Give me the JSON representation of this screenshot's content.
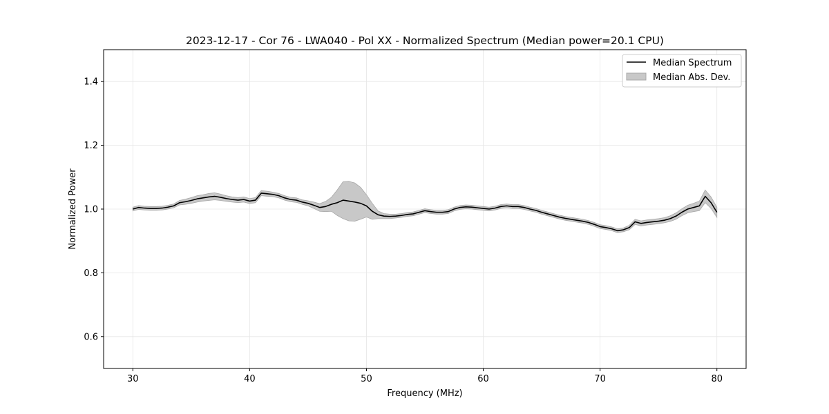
{
  "chart_data": {
    "type": "line",
    "title": "2023-12-17 - Cor 76 - LWA040 - Pol XX - Normalized Spectrum (Median power=20.1 CPU)",
    "xlabel": "Frequency (MHz)",
    "ylabel": "Normalized Power",
    "xlim": [
      27.5,
      82.5
    ],
    "ylim": [
      0.5,
      1.5
    ],
    "xticks": [
      30,
      40,
      50,
      60,
      70,
      80
    ],
    "yticks": [
      0.6,
      0.8,
      1.0,
      1.2,
      1.4
    ],
    "xtick_labels": [
      "30",
      "40",
      "50",
      "60",
      "70",
      "80"
    ],
    "ytick_labels": [
      "0.6",
      "0.8",
      "1.0",
      "1.2",
      "1.4"
    ],
    "grid": true,
    "legend_position": "top-right",
    "legend": [
      "Median Spectrum",
      "Median Abs. Dev."
    ],
    "colors": {
      "line": "#000000",
      "band": "#c8c8c8",
      "band_edge": "#a8a8a8",
      "grid": "#e6e6e6"
    },
    "series": [
      {
        "name": "Median Spectrum",
        "x": [
          30.0,
          30.5,
          31.0,
          31.5,
          32.0,
          32.5,
          33.0,
          33.5,
          34.0,
          34.5,
          35.0,
          35.5,
          36.0,
          36.5,
          37.0,
          37.5,
          38.0,
          38.5,
          39.0,
          39.5,
          40.0,
          40.5,
          41.0,
          41.5,
          42.0,
          42.5,
          43.0,
          43.5,
          44.0,
          44.5,
          45.0,
          45.5,
          46.0,
          46.5,
          47.0,
          47.5,
          48.0,
          48.5,
          49.0,
          49.5,
          50.0,
          50.5,
          51.0,
          51.5,
          52.0,
          52.5,
          53.0,
          53.5,
          54.0,
          54.5,
          55.0,
          55.5,
          56.0,
          56.5,
          57.0,
          57.5,
          58.0,
          58.5,
          59.0,
          59.5,
          60.0,
          60.5,
          61.0,
          61.5,
          62.0,
          62.5,
          63.0,
          63.5,
          64.0,
          64.5,
          65.0,
          65.5,
          66.0,
          66.5,
          67.0,
          67.5,
          68.0,
          68.5,
          69.0,
          69.5,
          70.0,
          70.5,
          71.0,
          71.5,
          72.0,
          72.5,
          73.0,
          73.5,
          74.0,
          74.5,
          75.0,
          75.5,
          76.0,
          76.5,
          77.0,
          77.5,
          78.0,
          78.5,
          79.0,
          79.5,
          80.0
        ],
        "values": [
          1.0,
          1.005,
          1.003,
          1.002,
          1.002,
          1.003,
          1.006,
          1.01,
          1.02,
          1.023,
          1.027,
          1.032,
          1.035,
          1.038,
          1.04,
          1.037,
          1.033,
          1.03,
          1.028,
          1.03,
          1.025,
          1.028,
          1.05,
          1.048,
          1.046,
          1.042,
          1.035,
          1.03,
          1.028,
          1.022,
          1.018,
          1.012,
          1.005,
          1.008,
          1.015,
          1.02,
          1.028,
          1.025,
          1.022,
          1.018,
          1.01,
          0.993,
          0.982,
          0.978,
          0.977,
          0.978,
          0.98,
          0.983,
          0.985,
          0.99,
          0.995,
          0.992,
          0.99,
          0.99,
          0.992,
          1.0,
          1.005,
          1.007,
          1.006,
          1.004,
          1.002,
          1.0,
          1.003,
          1.008,
          1.01,
          1.008,
          1.008,
          1.005,
          1.0,
          0.996,
          0.99,
          0.985,
          0.98,
          0.975,
          0.971,
          0.968,
          0.965,
          0.962,
          0.958,
          0.952,
          0.945,
          0.942,
          0.938,
          0.932,
          0.935,
          0.942,
          0.96,
          0.955,
          0.958,
          0.96,
          0.962,
          0.965,
          0.97,
          0.978,
          0.99,
          1.0,
          1.005,
          1.01,
          1.04,
          1.02,
          0.99
        ]
      },
      {
        "name": "Median Abs. Dev.",
        "x": [
          30.0,
          30.5,
          31.0,
          31.5,
          32.0,
          32.5,
          33.0,
          33.5,
          34.0,
          34.5,
          35.0,
          35.5,
          36.0,
          36.5,
          37.0,
          37.5,
          38.0,
          38.5,
          39.0,
          39.5,
          40.0,
          40.5,
          41.0,
          41.5,
          42.0,
          42.5,
          43.0,
          43.5,
          44.0,
          44.5,
          45.0,
          45.5,
          46.0,
          46.5,
          47.0,
          47.5,
          48.0,
          48.5,
          49.0,
          49.5,
          50.0,
          50.5,
          51.0,
          51.5,
          52.0,
          52.5,
          53.0,
          53.5,
          54.0,
          54.5,
          55.0,
          55.5,
          56.0,
          56.5,
          57.0,
          57.5,
          58.0,
          58.5,
          59.0,
          59.5,
          60.0,
          60.5,
          61.0,
          61.5,
          62.0,
          62.5,
          63.0,
          63.5,
          64.0,
          64.5,
          65.0,
          65.5,
          66.0,
          66.5,
          67.0,
          67.5,
          68.0,
          68.5,
          69.0,
          69.5,
          70.0,
          70.5,
          71.0,
          71.5,
          72.0,
          72.5,
          73.0,
          73.5,
          74.0,
          74.5,
          75.0,
          75.5,
          76.0,
          76.5,
          77.0,
          77.5,
          78.0,
          78.5,
          79.0,
          79.5,
          80.0
        ],
        "mad": [
          0.006,
          0.006,
          0.006,
          0.006,
          0.006,
          0.006,
          0.006,
          0.006,
          0.007,
          0.008,
          0.009,
          0.01,
          0.01,
          0.011,
          0.011,
          0.01,
          0.009,
          0.008,
          0.008,
          0.008,
          0.008,
          0.008,
          0.008,
          0.008,
          0.007,
          0.007,
          0.007,
          0.007,
          0.007,
          0.007,
          0.008,
          0.01,
          0.012,
          0.016,
          0.022,
          0.04,
          0.058,
          0.062,
          0.06,
          0.05,
          0.035,
          0.025,
          0.012,
          0.008,
          0.007,
          0.006,
          0.006,
          0.006,
          0.006,
          0.006,
          0.006,
          0.006,
          0.006,
          0.006,
          0.006,
          0.006,
          0.006,
          0.006,
          0.006,
          0.006,
          0.006,
          0.006,
          0.006,
          0.006,
          0.006,
          0.006,
          0.006,
          0.006,
          0.006,
          0.006,
          0.006,
          0.006,
          0.006,
          0.006,
          0.006,
          0.006,
          0.006,
          0.006,
          0.006,
          0.006,
          0.006,
          0.006,
          0.006,
          0.006,
          0.006,
          0.007,
          0.008,
          0.008,
          0.008,
          0.008,
          0.008,
          0.008,
          0.009,
          0.01,
          0.011,
          0.012,
          0.013,
          0.015,
          0.02,
          0.018,
          0.016
        ]
      }
    ]
  }
}
